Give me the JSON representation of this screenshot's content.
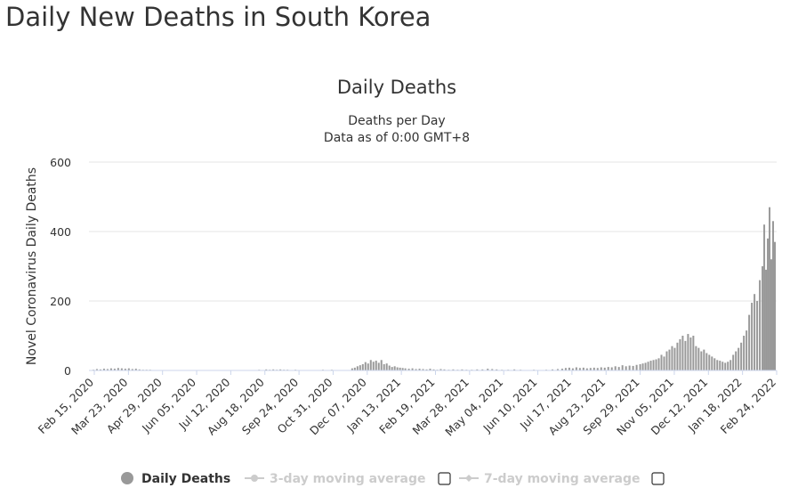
{
  "page": {
    "title": "Daily New Deaths in South Korea"
  },
  "chart_data": {
    "type": "bar",
    "title": "Daily Deaths",
    "subtitle_lines": [
      "Deaths per Day",
      "Data as of 0:00 GMT+8"
    ],
    "ylabel": "Novel Coronavirus Daily Deaths",
    "xlabel": "",
    "ylim": [
      0,
      600
    ],
    "y_ticks": [
      0,
      200,
      400,
      600
    ],
    "grid": true,
    "legend_position": "bottom",
    "bar_color": "#999999",
    "x_start": "2020-02-15",
    "x_end": "2022-04-01",
    "x_tick_labels": [
      "Feb 15, 2020",
      "Mar 23, 2020",
      "Apr 29, 2020",
      "Jun 05, 2020",
      "Jul 12, 2020",
      "Aug 18, 2020",
      "Sep 24, 2020",
      "Oct 31, 2020",
      "Dec 07, 2020",
      "Jan 13, 2021",
      "Feb 19, 2021",
      "Mar 28, 2021",
      "May 04, 2021",
      "Jun 10, 2021",
      "Jul 17, 2021",
      "Aug 23, 2021",
      "Sep 29, 2021",
      "Nov 05, 2021",
      "Dec 12, 2021",
      "Jan 18, 2022",
      "Feb 24, 2022"
    ],
    "series": [
      {
        "name": "Daily Deaths",
        "points": [
          [
            "2020-02-20",
            2
          ],
          [
            "2020-02-24",
            4
          ],
          [
            "2020-02-28",
            3
          ],
          [
            "2020-03-03",
            5
          ],
          [
            "2020-03-07",
            4
          ],
          [
            "2020-03-11",
            6
          ],
          [
            "2020-03-15",
            5
          ],
          [
            "2020-03-19",
            7
          ],
          [
            "2020-03-23",
            6
          ],
          [
            "2020-03-27",
            5
          ],
          [
            "2020-03-31",
            6
          ],
          [
            "2020-04-04",
            4
          ],
          [
            "2020-04-08",
            5
          ],
          [
            "2020-04-12",
            3
          ],
          [
            "2020-04-16",
            2
          ],
          [
            "2020-04-20",
            2
          ],
          [
            "2020-04-24",
            2
          ],
          [
            "2020-04-28",
            1
          ],
          [
            "2020-08-25",
            2
          ],
          [
            "2020-08-29",
            1
          ],
          [
            "2020-09-02",
            3
          ],
          [
            "2020-09-06",
            2
          ],
          [
            "2020-09-10",
            3
          ],
          [
            "2020-09-14",
            2
          ],
          [
            "2020-09-18",
            3
          ],
          [
            "2020-09-22",
            2
          ],
          [
            "2020-09-26",
            2
          ],
          [
            "2020-09-30",
            1
          ],
          [
            "2020-10-05",
            2
          ],
          [
            "2020-10-12",
            1
          ],
          [
            "2020-10-20",
            1
          ],
          [
            "2020-11-05",
            2
          ],
          [
            "2020-11-15",
            2
          ],
          [
            "2020-12-08",
            6
          ],
          [
            "2020-12-11",
            8
          ],
          [
            "2020-12-14",
            12
          ],
          [
            "2020-12-17",
            15
          ],
          [
            "2020-12-20",
            18
          ],
          [
            "2020-12-23",
            24
          ],
          [
            "2020-12-26",
            20
          ],
          [
            "2020-12-29",
            30
          ],
          [
            "2021-01-01",
            25
          ],
          [
            "2021-01-04",
            28
          ],
          [
            "2021-01-07",
            22
          ],
          [
            "2021-01-10",
            30
          ],
          [
            "2021-01-13",
            18
          ],
          [
            "2021-01-16",
            20
          ],
          [
            "2021-01-19",
            14
          ],
          [
            "2021-01-22",
            10
          ],
          [
            "2021-01-25",
            12
          ],
          [
            "2021-01-28",
            9
          ],
          [
            "2021-01-31",
            8
          ],
          [
            "2021-02-03",
            7
          ],
          [
            "2021-02-06",
            6
          ],
          [
            "2021-02-10",
            5
          ],
          [
            "2021-02-14",
            6
          ],
          [
            "2021-02-18",
            4
          ],
          [
            "2021-02-22",
            5
          ],
          [
            "2021-02-26",
            4
          ],
          [
            "2021-03-02",
            3
          ],
          [
            "2021-03-06",
            5
          ],
          [
            "2021-03-10",
            3
          ],
          [
            "2021-03-14",
            2
          ],
          [
            "2021-03-18",
            4
          ],
          [
            "2021-03-22",
            3
          ],
          [
            "2021-03-27",
            2
          ],
          [
            "2021-04-01",
            3
          ],
          [
            "2021-04-06",
            2
          ],
          [
            "2021-04-11",
            3
          ],
          [
            "2021-04-16",
            2
          ],
          [
            "2021-04-22",
            2
          ],
          [
            "2021-04-28",
            3
          ],
          [
            "2021-05-04",
            3
          ],
          [
            "2021-05-10",
            5
          ],
          [
            "2021-05-15",
            4
          ],
          [
            "2021-05-20",
            3
          ],
          [
            "2021-05-26",
            2
          ],
          [
            "2021-06-02",
            2
          ],
          [
            "2021-06-09",
            3
          ],
          [
            "2021-06-16",
            2
          ],
          [
            "2021-06-24",
            1
          ],
          [
            "2021-07-01",
            2
          ],
          [
            "2021-07-08",
            1
          ],
          [
            "2021-07-15",
            2
          ],
          [
            "2021-07-22",
            3
          ],
          [
            "2021-07-28",
            4
          ],
          [
            "2021-08-02",
            5
          ],
          [
            "2021-08-06",
            7
          ],
          [
            "2021-08-10",
            8
          ],
          [
            "2021-08-14",
            6
          ],
          [
            "2021-08-18",
            9
          ],
          [
            "2021-08-22",
            7
          ],
          [
            "2021-08-26",
            8
          ],
          [
            "2021-08-30",
            6
          ],
          [
            "2021-09-03",
            7
          ],
          [
            "2021-09-07",
            8
          ],
          [
            "2021-09-11",
            7
          ],
          [
            "2021-09-15",
            9
          ],
          [
            "2021-09-19",
            8
          ],
          [
            "2021-09-23",
            10
          ],
          [
            "2021-09-27",
            9
          ],
          [
            "2021-10-01",
            12
          ],
          [
            "2021-10-05",
            10
          ],
          [
            "2021-10-09",
            15
          ],
          [
            "2021-10-13",
            12
          ],
          [
            "2021-10-17",
            14
          ],
          [
            "2021-10-21",
            13
          ],
          [
            "2021-10-25",
            16
          ],
          [
            "2021-10-29",
            18
          ],
          [
            "2021-11-01",
            20
          ],
          [
            "2021-11-04",
            22
          ],
          [
            "2021-11-07",
            25
          ],
          [
            "2021-11-10",
            28
          ],
          [
            "2021-11-13",
            30
          ],
          [
            "2021-11-16",
            32
          ],
          [
            "2021-11-19",
            35
          ],
          [
            "2021-11-22",
            45
          ],
          [
            "2021-11-25",
            40
          ],
          [
            "2021-11-28",
            55
          ],
          [
            "2021-12-01",
            60
          ],
          [
            "2021-12-04",
            70
          ],
          [
            "2021-12-07",
            65
          ],
          [
            "2021-12-10",
            80
          ],
          [
            "2021-12-13",
            90
          ],
          [
            "2021-12-16",
            100
          ],
          [
            "2021-12-19",
            85
          ],
          [
            "2021-12-22",
            105
          ],
          [
            "2021-12-25",
            95
          ],
          [
            "2021-12-28",
            100
          ],
          [
            "2021-12-31",
            70
          ],
          [
            "2022-01-03",
            65
          ],
          [
            "2022-01-06",
            55
          ],
          [
            "2022-01-09",
            60
          ],
          [
            "2022-01-12",
            50
          ],
          [
            "2022-01-15",
            45
          ],
          [
            "2022-01-18",
            40
          ],
          [
            "2022-01-21",
            35
          ],
          [
            "2022-01-24",
            30
          ],
          [
            "2022-01-27",
            28
          ],
          [
            "2022-01-30",
            25
          ],
          [
            "2022-02-02",
            22
          ],
          [
            "2022-02-05",
            25
          ],
          [
            "2022-02-08",
            30
          ],
          [
            "2022-02-11",
            45
          ],
          [
            "2022-02-14",
            55
          ],
          [
            "2022-02-17",
            65
          ],
          [
            "2022-02-20",
            80
          ],
          [
            "2022-02-23",
            100
          ],
          [
            "2022-02-26",
            115
          ],
          [
            "2022-03-01",
            160
          ],
          [
            "2022-03-04",
            195
          ],
          [
            "2022-03-07",
            220
          ],
          [
            "2022-03-10",
            200
          ],
          [
            "2022-03-13",
            260
          ],
          [
            "2022-03-16",
            300
          ],
          [
            "2022-03-18",
            420
          ],
          [
            "2022-03-20",
            290
          ],
          [
            "2022-03-22",
            380
          ],
          [
            "2022-03-24",
            470
          ],
          [
            "2022-03-26",
            320
          ],
          [
            "2022-03-28",
            430
          ],
          [
            "2022-03-30",
            370
          ]
        ]
      }
    ],
    "legend": [
      {
        "name": "Daily Deaths",
        "color": "#999999",
        "enabled": true
      },
      {
        "name": "3-day moving average",
        "color": "#cccccc",
        "enabled": false
      },
      {
        "name": "7-day moving average",
        "color": "#cccccc",
        "enabled": false
      }
    ]
  }
}
